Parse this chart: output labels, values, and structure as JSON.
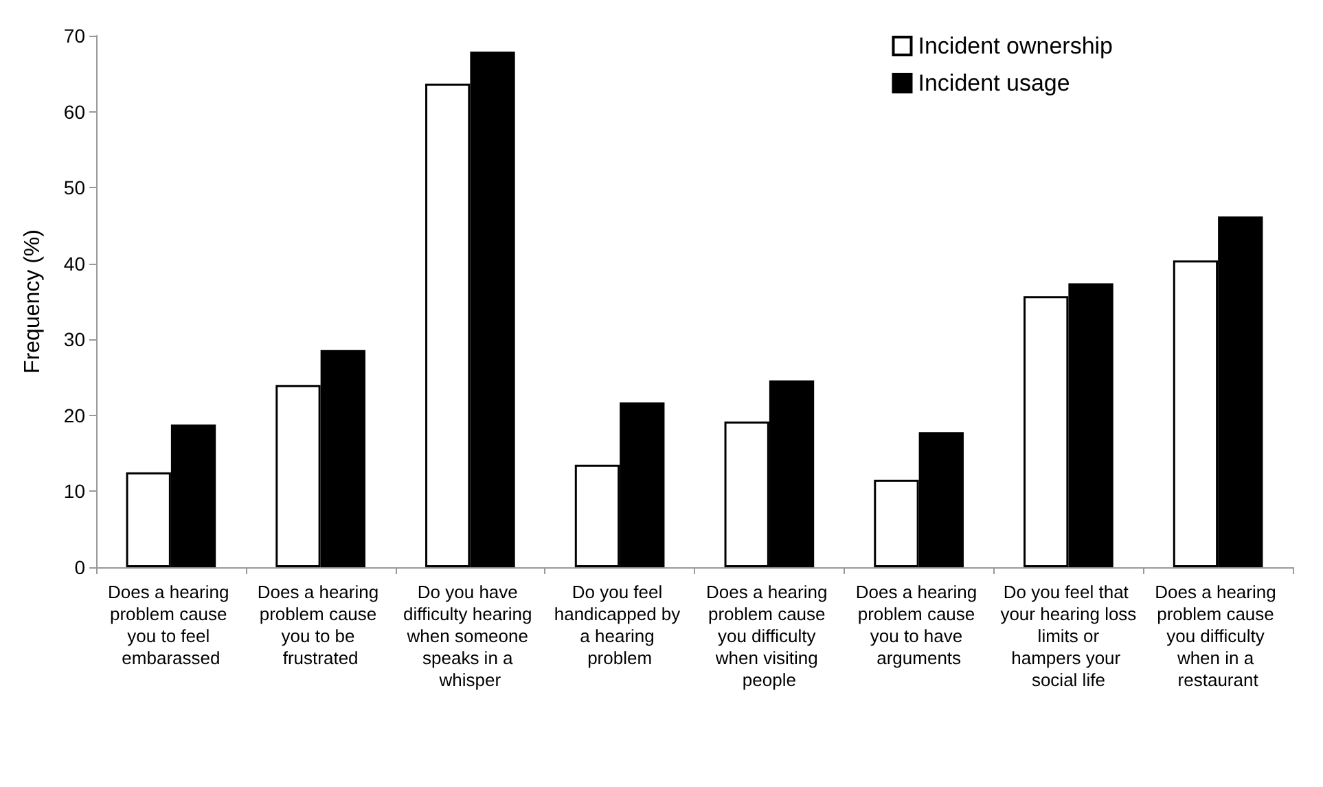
{
  "chart_data": {
    "type": "bar",
    "ylabel": "Frequency (%)",
    "categories": [
      "Does a hearing problem cause you to feel embarassed",
      "Does a hearing problem cause you to be frustrated",
      "Do you have difficulty hearing when someone speaks in a whisper",
      "Do you feel handicapped by a hearing problem",
      "Does a hearing problem cause you difficulty when visiting people",
      "Does a hearing problem cause you to have arguments",
      "Do you feel that your hearing loss limits or hampers your social life",
      "Does a hearing problem cause you difficulty when in a restaurant"
    ],
    "series": [
      {
        "name": "Incident ownership",
        "color": "#ffffff",
        "values": [
          12.5,
          24.0,
          63.7,
          13.5,
          19.2,
          11.5,
          35.7,
          40.4
        ]
      },
      {
        "name": "Incident usage",
        "color": "#000000",
        "values": [
          18.8,
          28.6,
          67.9,
          21.7,
          24.6,
          17.8,
          37.4,
          46.2
        ]
      }
    ],
    "ylim": [
      0,
      70
    ],
    "yticks": [
      0,
      10,
      20,
      30,
      40,
      50,
      60,
      70
    ],
    "grid": false,
    "legend": "top right"
  }
}
